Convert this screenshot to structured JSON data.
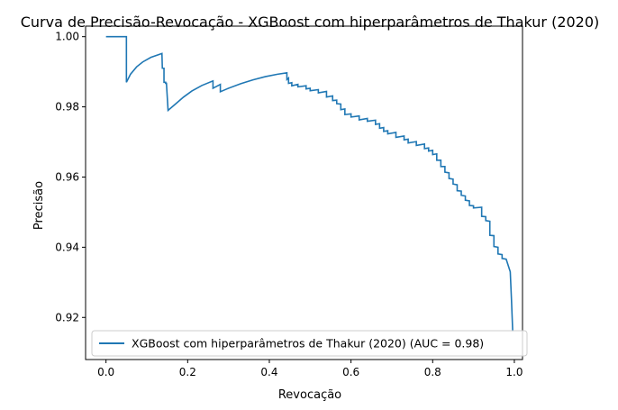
{
  "chart_data": {
    "type": "line",
    "title": "Curva de Precisão-Revocação - XGBoost com hiperparâmetros de Thakur (2020)",
    "xlabel": "Revocação",
    "ylabel": "Precisão",
    "xlim": [
      -0.05,
      1.02
    ],
    "ylim": [
      0.908,
      1.003
    ],
    "xticks": [
      0.0,
      0.2,
      0.4,
      0.6,
      0.8,
      1.0
    ],
    "xtick_labels": [
      "0.0",
      "0.2",
      "0.4",
      "0.6",
      "0.8",
      "1.0"
    ],
    "yticks": [
      0.92,
      0.94,
      0.96,
      0.98,
      1.0
    ],
    "ytick_labels": [
      "0.92",
      "0.94",
      "0.96",
      "0.98",
      "1.00"
    ],
    "grid": false,
    "legend_position": "lower-left",
    "series": [
      {
        "name": "XGBoost com hiperparâmetros de Thakur (2020) (AUC = 0.98)",
        "color": "#1f77b4",
        "points": [
          [
            0.0,
            1.0
          ],
          [
            0.05,
            1.0
          ],
          [
            0.05,
            0.987
          ],
          [
            0.06,
            0.9893
          ],
          [
            0.075,
            0.9914
          ],
          [
            0.09,
            0.9928
          ],
          [
            0.11,
            0.9941
          ],
          [
            0.137,
            0.9952
          ],
          [
            0.138,
            0.991
          ],
          [
            0.142,
            0.991
          ],
          [
            0.142,
            0.987
          ],
          [
            0.146,
            0.987
          ],
          [
            0.146,
            0.9867
          ],
          [
            0.148,
            0.9867
          ],
          [
            0.152,
            0.979
          ],
          [
            0.17,
            0.9808
          ],
          [
            0.19,
            0.9828
          ],
          [
            0.21,
            0.9845
          ],
          [
            0.235,
            0.9861
          ],
          [
            0.262,
            0.9874
          ],
          [
            0.262,
            0.9853
          ],
          [
            0.28,
            0.9864
          ],
          [
            0.28,
            0.9843
          ],
          [
            0.3,
            0.9853
          ],
          [
            0.33,
            0.9866
          ],
          [
            0.36,
            0.9877
          ],
          [
            0.39,
            0.9886
          ],
          [
            0.42,
            0.9893
          ],
          [
            0.443,
            0.9897
          ],
          [
            0.443,
            0.9878
          ],
          [
            0.447,
            0.9882
          ],
          [
            0.447,
            0.9867
          ],
          [
            0.455,
            0.9869
          ],
          [
            0.455,
            0.986
          ],
          [
            0.47,
            0.9864
          ],
          [
            0.47,
            0.9857
          ],
          [
            0.49,
            0.986
          ],
          [
            0.49,
            0.9851
          ],
          [
            0.5,
            0.9853
          ],
          [
            0.5,
            0.9846
          ],
          [
            0.52,
            0.9849
          ],
          [
            0.52,
            0.984
          ],
          [
            0.54,
            0.9844
          ],
          [
            0.54,
            0.9828
          ],
          [
            0.555,
            0.9831
          ],
          [
            0.555,
            0.9818
          ],
          [
            0.565,
            0.9819
          ],
          [
            0.565,
            0.9809
          ],
          [
            0.575,
            0.9808
          ],
          [
            0.575,
            0.9792
          ],
          [
            0.585,
            0.9794
          ],
          [
            0.585,
            0.9778
          ],
          [
            0.6,
            0.978
          ],
          [
            0.6,
            0.9771
          ],
          [
            0.62,
            0.9774
          ],
          [
            0.62,
            0.9763
          ],
          [
            0.64,
            0.9767
          ],
          [
            0.64,
            0.9759
          ],
          [
            0.66,
            0.9762
          ],
          [
            0.66,
            0.975
          ],
          [
            0.67,
            0.9752
          ],
          [
            0.67,
            0.9739
          ],
          [
            0.68,
            0.9741
          ],
          [
            0.68,
            0.973
          ],
          [
            0.69,
            0.9732
          ],
          [
            0.69,
            0.9723
          ],
          [
            0.71,
            0.9727
          ],
          [
            0.71,
            0.9713
          ],
          [
            0.73,
            0.9717
          ],
          [
            0.73,
            0.9706
          ],
          [
            0.74,
            0.9708
          ],
          [
            0.74,
            0.9697
          ],
          [
            0.76,
            0.9701
          ],
          [
            0.76,
            0.969
          ],
          [
            0.78,
            0.9694
          ],
          [
            0.78,
            0.9681
          ],
          [
            0.79,
            0.9683
          ],
          [
            0.79,
            0.9674
          ],
          [
            0.8,
            0.9676
          ],
          [
            0.8,
            0.9664
          ],
          [
            0.81,
            0.9666
          ],
          [
            0.81,
            0.9648
          ],
          [
            0.82,
            0.9648
          ],
          [
            0.82,
            0.963
          ],
          [
            0.83,
            0.963
          ],
          [
            0.83,
            0.9614
          ],
          [
            0.84,
            0.9612
          ],
          [
            0.84,
            0.9596
          ],
          [
            0.85,
            0.9594
          ],
          [
            0.85,
            0.958
          ],
          [
            0.86,
            0.9578
          ],
          [
            0.86,
            0.9561
          ],
          [
            0.87,
            0.956
          ],
          [
            0.87,
            0.9548
          ],
          [
            0.88,
            0.9546
          ],
          [
            0.88,
            0.9534
          ],
          [
            0.89,
            0.9532
          ],
          [
            0.89,
            0.9519
          ],
          [
            0.9,
            0.9518
          ],
          [
            0.9,
            0.9512
          ],
          [
            0.92,
            0.9514
          ],
          [
            0.92,
            0.9488
          ],
          [
            0.93,
            0.9487
          ],
          [
            0.93,
            0.9476
          ],
          [
            0.94,
            0.9474
          ],
          [
            0.94,
            0.9434
          ],
          [
            0.95,
            0.9433
          ],
          [
            0.95,
            0.9402
          ],
          [
            0.96,
            0.94
          ],
          [
            0.96,
            0.9381
          ],
          [
            0.97,
            0.9379
          ],
          [
            0.97,
            0.9368
          ],
          [
            0.98,
            0.9366
          ],
          [
            0.99,
            0.933
          ],
          [
            0.993,
            0.925
          ],
          [
            0.996,
            0.916
          ]
        ]
      }
    ]
  }
}
